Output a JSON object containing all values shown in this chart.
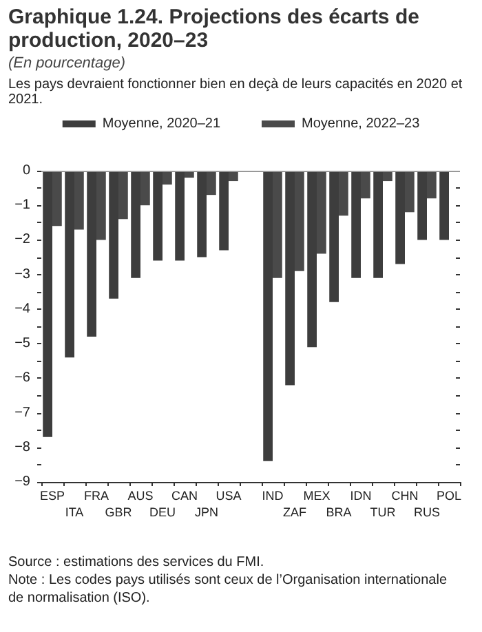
{
  "chart_data": {
    "type": "bar",
    "title": "Graphique 1.24.  Projections des écarts de production, 2020–23",
    "subtitle": "(En pourcentage)",
    "annotations": [
      "Les pays devraient fonctionner bien en deçà de leurs capacités en 2020 et 2021.",
      "Source : estimations des services du FMI.",
      "Note : Les codes pays utilisés sont ceux de l’Organisation internationale de normalisation (ISO)."
    ],
    "categories": [
      "ESP",
      "ITA",
      "FRA",
      "GBR",
      "AUS",
      "DEU",
      "CAN",
      "JPN",
      "USA",
      null,
      "IND",
      "ZAF",
      "MEX",
      "BRA",
      "IDN",
      "TUR",
      "CHN",
      "RUS",
      "POL"
    ],
    "series": [
      {
        "name": "Moyenne, 2020–21",
        "color": "#3d3d3d",
        "values": [
          -7.7,
          -5.4,
          -4.8,
          -3.7,
          -3.1,
          -2.6,
          -2.6,
          -2.5,
          -2.3,
          null,
          -8.4,
          -6.2,
          -5.1,
          -3.8,
          -3.1,
          -3.1,
          -2.7,
          -2.0,
          -2.0
        ]
      },
      {
        "name": "Moyenne, 2022–23",
        "color": "#4a4a4a",
        "values": [
          -1.6,
          -1.7,
          -2.0,
          -1.4,
          -1.0,
          -0.4,
          -0.2,
          -0.7,
          -0.3,
          null,
          -3.1,
          -2.9,
          -2.4,
          -1.3,
          -0.8,
          -0.3,
          -1.2,
          -0.8,
          null
        ]
      }
    ],
    "ylim": [
      -9,
      0
    ],
    "yticks": [
      -9,
      {
        "value": -8.5,
        "label": null
      },
      -8,
      {
        "value": -7.5,
        "label": null
      },
      -7,
      {
        "value": -6.5,
        "label": null
      },
      -6,
      {
        "value": -5.5,
        "label": null
      },
      -5,
      {
        "value": -4.5,
        "label": null
      },
      -4,
      {
        "value": -3.5,
        "label": null
      },
      -3,
      {
        "value": -2.5,
        "label": null
      },
      -2,
      {
        "value": -1.5,
        "label": null
      },
      -1,
      {
        "value": -0.5,
        "label": null
      },
      0
    ],
    "ref_lines": [
      {
        "axis": "y",
        "value": 0,
        "color": "#999999"
      }
    ],
    "legend": "top",
    "grid": false
  }
}
